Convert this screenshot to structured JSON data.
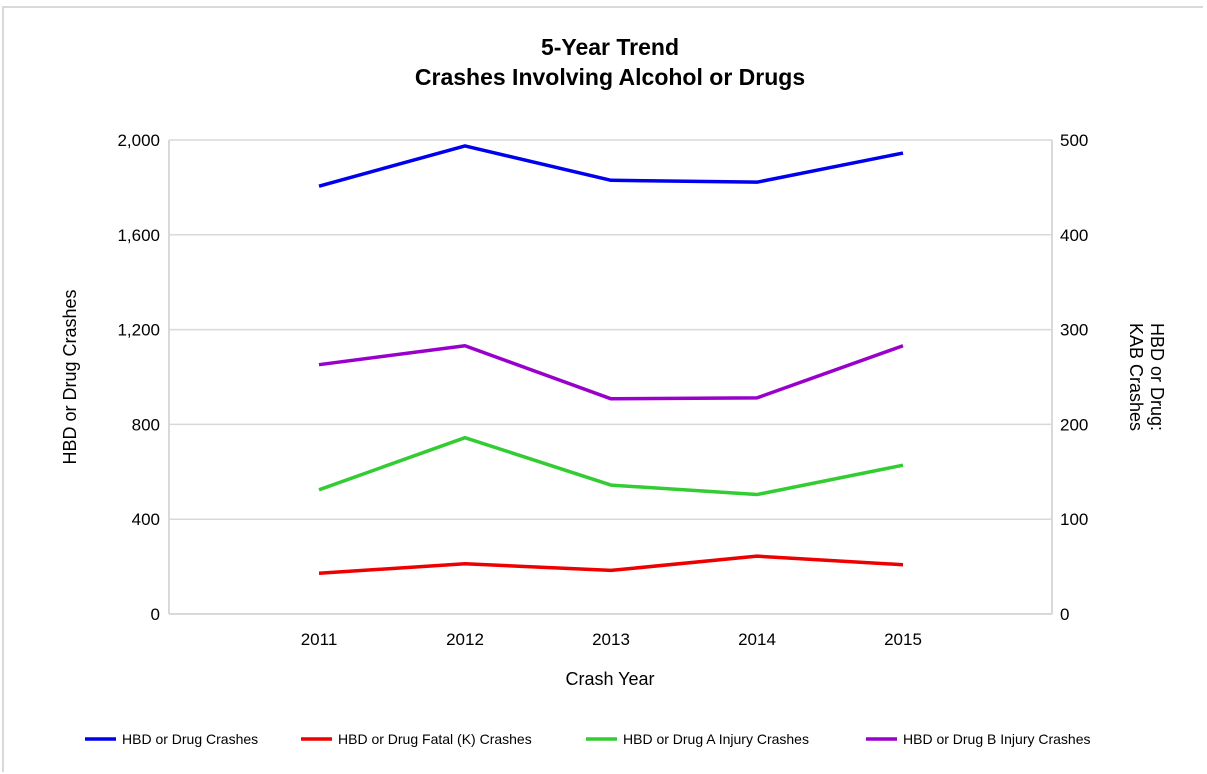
{
  "chart_data": {
    "type": "line",
    "title": "5-Year Trend",
    "subtitle": "Crashes Involving Alcohol or Drugs",
    "xlabel": "Crash Year",
    "ylabel_left": "HBD or Drug Crashes",
    "ylabel_right_lines": [
      "HBD or Drug:",
      "KAB Crashes"
    ],
    "categories": [
      "2011",
      "2012",
      "2013",
      "2014",
      "2015"
    ],
    "y_left": {
      "min": 0,
      "max": 2000,
      "ticks": [
        0,
        400,
        800,
        1200,
        1600,
        2000
      ],
      "tick_labels": [
        "0",
        "400",
        "800",
        "1,200",
        "1,600",
        "2,000"
      ]
    },
    "y_right": {
      "min": 0,
      "max": 500,
      "ticks": [
        0,
        100,
        200,
        300,
        400,
        500
      ],
      "tick_labels": [
        "0",
        "100",
        "200",
        "300",
        "400",
        "500"
      ]
    },
    "grid": true,
    "legend_position": "bottom",
    "series": [
      {
        "name": "HBD or Drug Crashes",
        "axis": "left",
        "color": "#0000ee",
        "values": [
          1805,
          1975,
          1830,
          1822,
          1945
        ]
      },
      {
        "name": "HBD or Drug Fatal (K) Crashes",
        "axis": "right",
        "color": "#ee0000",
        "values": [
          43,
          53,
          46,
          61,
          52
        ]
      },
      {
        "name": "HBD or Drug A Injury Crashes",
        "axis": "right",
        "color": "#33cc33",
        "values": [
          131,
          186,
          136,
          126,
          157
        ]
      },
      {
        "name": "HBD or Drug B Injury Crashes",
        "axis": "right",
        "color": "#9900cc",
        "values": [
          263,
          283,
          227,
          228,
          283
        ]
      }
    ]
  }
}
